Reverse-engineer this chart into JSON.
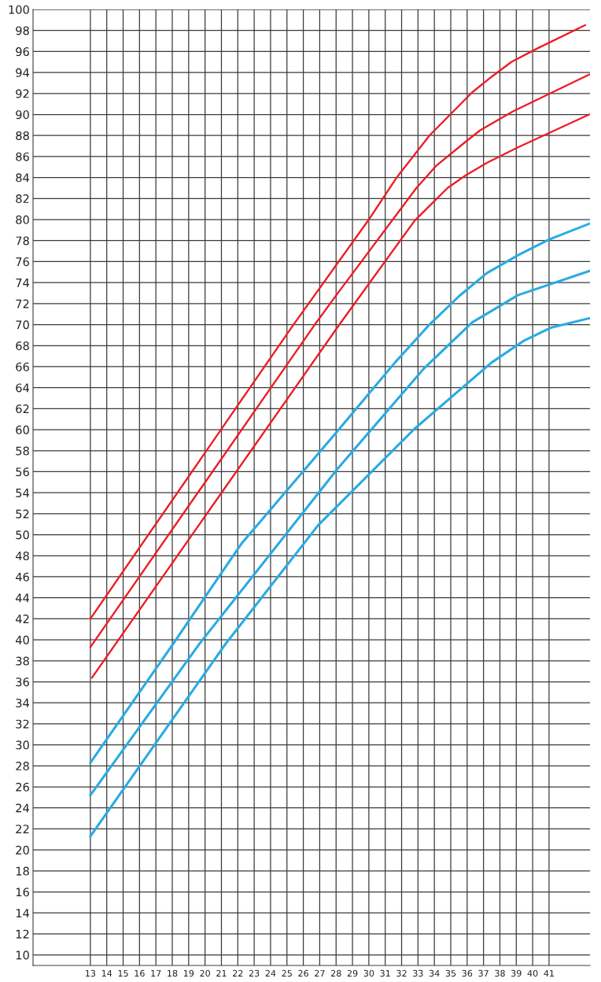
{
  "chart_data": {
    "type": "line",
    "xlim": [
      9.5,
      43.5
    ],
    "xticks": [
      13,
      14,
      15,
      16,
      17,
      18,
      19,
      20,
      21,
      22,
      23,
      24,
      25,
      26,
      27,
      28,
      29,
      30,
      31,
      32,
      33,
      34,
      35,
      36,
      37,
      38,
      39,
      40,
      41
    ],
    "ylim": [
      9,
      100
    ],
    "yticks": [
      10,
      12,
      14,
      16,
      18,
      20,
      22,
      24,
      26,
      28,
      30,
      32,
      34,
      36,
      38,
      40,
      42,
      44,
      46,
      48,
      50,
      52,
      54,
      56,
      58,
      60,
      62,
      64,
      66,
      68,
      70,
      72,
      74,
      76,
      78,
      80,
      82,
      84,
      86,
      88,
      90,
      92,
      94,
      96,
      98,
      100
    ],
    "grid": true,
    "marker": "none",
    "line_style": "solid",
    "series": [
      {
        "color": "#ed1c24",
        "x": [
          13,
          25.4,
          30,
          31.7,
          33.7,
          36.3,
          37.5,
          38.7,
          40.3,
          43.2
        ],
        "values": [
          42,
          70,
          80,
          84,
          88,
          92.1,
          93.6,
          95,
          96.3,
          98.5
        ]
      },
      {
        "color": "#ed1c24",
        "x": [
          13,
          26.7,
          28.2,
          32.9,
          34.1,
          35.9,
          36.8,
          38.8,
          43.45
        ],
        "values": [
          39.3,
          70,
          73.2,
          83,
          85.1,
          87.4,
          88.5,
          90.3,
          93.8
        ]
      },
      {
        "color": "#ed1c24",
        "x": [
          13.1,
          28.2,
          32.8,
          34.8,
          35.9,
          37.2,
          39,
          43.45
        ],
        "values": [
          36.4,
          70,
          79.9,
          83,
          84.2,
          85.4,
          86.8,
          90
        ]
      },
      {
        "color": "#29abe2",
        "x": [
          13,
          18,
          22.2,
          28.1,
          31.6,
          33.7,
          35.5,
          37.2,
          39.1,
          41,
          43.45
        ],
        "values": [
          28.3,
          39.5,
          49.1,
          59.9,
          66.4,
          70,
          72.7,
          74.9,
          76.6,
          78.1,
          79.6
        ]
      },
      {
        "color": "#29abe2",
        "x": [
          13,
          19.6,
          28.1,
          33.35,
          36.3,
          39.1,
          43.45
        ],
        "values": [
          25.2,
          39.5,
          56.3,
          65.8,
          70.2,
          72.8,
          75.1
        ]
      },
      {
        "color": "#29abe2",
        "x": [
          13,
          21.2,
          26.9,
          32.8,
          37.5,
          39.5,
          41.1,
          43.45
        ],
        "values": [
          21.3,
          39.5,
          50.9,
          60.1,
          66.4,
          68.5,
          69.7,
          70.6
        ]
      }
    ]
  }
}
